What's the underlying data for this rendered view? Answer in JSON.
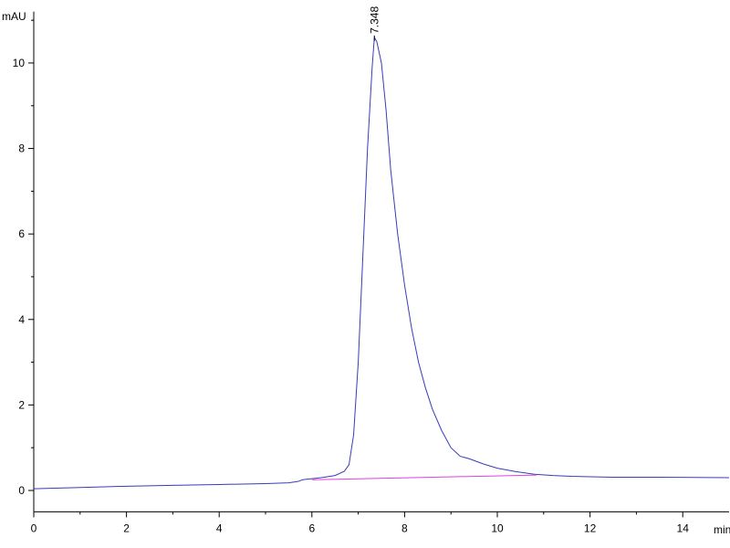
{
  "chart_data": {
    "type": "line",
    "xlabel": "min",
    "ylabel": "mAU",
    "xlim": [
      0,
      15
    ],
    "ylim": [
      -0.5,
      11.2
    ],
    "xticks": [
      0,
      2,
      4,
      6,
      8,
      10,
      12,
      14
    ],
    "xminorticks": [
      1,
      3,
      5,
      7,
      9,
      11,
      13
    ],
    "yticks": [
      0,
      2,
      4,
      6,
      8,
      10
    ],
    "yminorticks": [
      1,
      3,
      5,
      7,
      9,
      11
    ],
    "series": [
      {
        "color": "#3b3bb8",
        "x": [
          0,
          1,
          2,
          3,
          4,
          5,
          5.5,
          5.7,
          5.8,
          6.2,
          6.5,
          6.7,
          6.8,
          6.9,
          7.0,
          7.1,
          7.2,
          7.3,
          7.348,
          7.4,
          7.5,
          7.6,
          7.7,
          7.85,
          8.0,
          8.15,
          8.3,
          8.45,
          8.6,
          8.8,
          9.0,
          9.2,
          9.4,
          9.7,
          10.0,
          10.4,
          10.8,
          11.2,
          11.6,
          12.5,
          13.5,
          15
        ],
        "values": [
          0.04,
          0.07,
          0.1,
          0.12,
          0.14,
          0.16,
          0.18,
          0.21,
          0.25,
          0.3,
          0.35,
          0.45,
          0.6,
          1.3,
          3.0,
          5.5,
          8.0,
          9.9,
          10.6,
          10.5,
          10.0,
          8.9,
          7.5,
          6.0,
          4.8,
          3.8,
          3.0,
          2.4,
          1.9,
          1.4,
          1.0,
          0.8,
          0.74,
          0.62,
          0.52,
          0.44,
          0.38,
          0.35,
          0.33,
          0.31,
          0.31,
          0.3
        ]
      },
      {
        "color": "#e040e0",
        "x": [
          6.0,
          10.85
        ],
        "values": [
          0.25,
          0.36
        ]
      }
    ],
    "annotations": [
      {
        "text": "7.348",
        "x": 7.348,
        "y": 10.6
      }
    ]
  }
}
